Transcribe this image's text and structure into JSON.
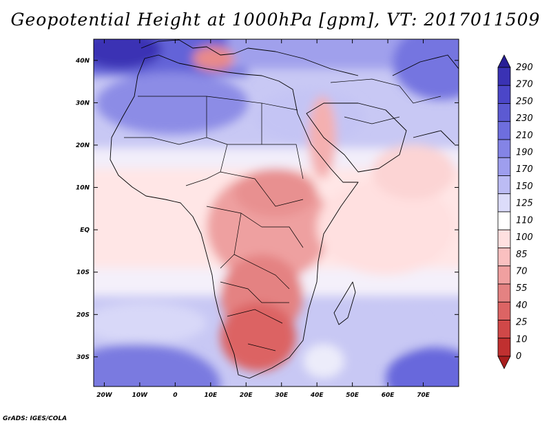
{
  "title": "Geopotential Height at 1000hPa [gpm], VT: 2017011509",
  "credit": "GrADS: IGES/COLA",
  "map": {
    "lon_range": [
      -23,
      80
    ],
    "lat_range": [
      -37,
      45
    ],
    "x_ticks": [
      "20W",
      "10W",
      "0",
      "10E",
      "20E",
      "30E",
      "40E",
      "50E",
      "60E",
      "70E"
    ],
    "y_ticks": [
      "40N",
      "30N",
      "20N",
      "10N",
      "EQ",
      "10S",
      "20S",
      "30S"
    ]
  },
  "colorbar": {
    "labels": [
      "290",
      "270",
      "250",
      "230",
      "210",
      "190",
      "170",
      "150",
      "125",
      "110",
      "100",
      "85",
      "70",
      "55",
      "40",
      "25",
      "10",
      "0"
    ],
    "colors": [
      "#281e96",
      "#3a32b4",
      "#4b46c8",
      "#5c5ad2",
      "#6e6ede",
      "#8484e6",
      "#9e9eee",
      "#bcbcf4",
      "#dcdcfa",
      "#ffffff",
      "#ffe0e0",
      "#fac0c0",
      "#f0a0a0",
      "#e48282",
      "#dc6464",
      "#d04848",
      "#c03030",
      "#a81e1e"
    ]
  }
}
